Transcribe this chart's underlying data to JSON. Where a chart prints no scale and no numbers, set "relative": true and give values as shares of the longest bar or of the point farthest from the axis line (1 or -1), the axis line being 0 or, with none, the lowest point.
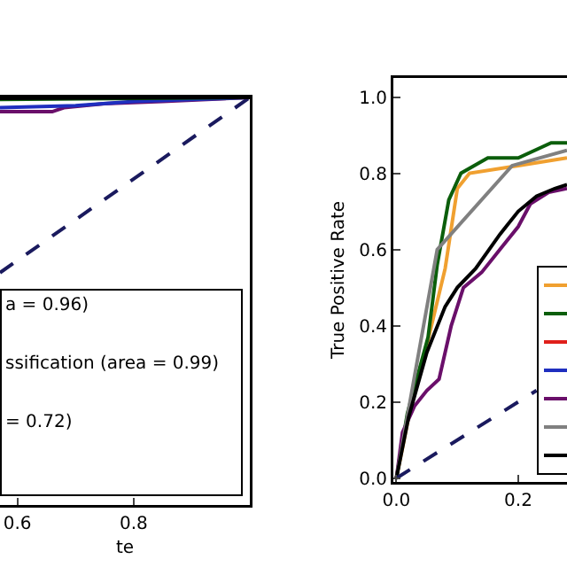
{
  "chart_data": [
    {
      "type": "line",
      "relative": true,
      "xlabel": "te",
      "xlim": [
        0.57,
        1.0
      ],
      "xticks": [
        {
          "value": 0.6,
          "label": "0.6"
        },
        {
          "value": 0.8,
          "label": "0.8"
        }
      ],
      "tick_labels": "x",
      "grid": false,
      "annotations": [
        "a = 0.96)",
        "ssification (area = 0.99)",
        "= 0.72)"
      ],
      "series": [
        {
          "color": "#1a1a5e",
          "line_style": "dashed",
          "x": [
            0.57,
            1.0
          ],
          "values": [
            0.57,
            1.0
          ]
        },
        {
          "color": "#6a0f6a",
          "x": [
            0.57,
            0.66,
            0.68,
            0.75,
            0.85,
            1.0
          ],
          "values": [
            0.965,
            0.965,
            0.975,
            0.985,
            0.99,
            1.0
          ]
        },
        {
          "color": "#1f2fbf",
          "x": [
            0.57,
            0.7,
            0.8,
            0.9,
            1.0
          ],
          "values": [
            0.975,
            0.98,
            0.99,
            0.995,
            1.0
          ]
        },
        {
          "color": "#0b5e0b",
          "x": [
            0.57,
            1.0
          ],
          "values": [
            0.995,
            1.0
          ]
        },
        {
          "color": "#000000",
          "x": [
            0.57,
            1.0
          ],
          "values": [
            0.998,
            1.0
          ]
        }
      ]
    },
    {
      "type": "line",
      "ylabel": "True Positive Rate",
      "xlim": [
        -0.005,
        0.28
      ],
      "ylim": [
        -0.01,
        1.05
      ],
      "xticks": [
        {
          "value": 0,
          "label": "0.0"
        },
        {
          "value": 0.2,
          "label": "0.2"
        }
      ],
      "yticks": [
        {
          "value": 0,
          "label": "0.0"
        },
        {
          "value": 0.2,
          "label": "0.2"
        },
        {
          "value": 0.4,
          "label": "0.4"
        },
        {
          "value": 0.6,
          "label": "0.6"
        },
        {
          "value": 0.8,
          "label": "0.8"
        },
        {
          "value": 1.0,
          "label": "1.0"
        }
      ],
      "grid": false,
      "series": [
        {
          "color": "#f0a030",
          "x": [
            0,
            0.02,
            0.05,
            0.08,
            0.1,
            0.12,
            0.2,
            0.28
          ],
          "values": [
            0,
            0.16,
            0.35,
            0.55,
            0.76,
            0.8,
            0.82,
            0.84
          ]
        },
        {
          "color": "#0b5e0b",
          "x": [
            0,
            0.018,
            0.052,
            0.067,
            0.086,
            0.106,
            0.15,
            0.2,
            0.254,
            0.28
          ],
          "values": [
            0,
            0.17,
            0.37,
            0.56,
            0.73,
            0.8,
            0.84,
            0.84,
            0.88,
            0.88
          ]
        },
        {
          "color": "#e0201b"
        },
        {
          "color": "#1f2fbf"
        },
        {
          "color": "#6a0f6a",
          "x": [
            0,
            0.01,
            0.03,
            0.05,
            0.07,
            0.09,
            0.11,
            0.14,
            0.17,
            0.2,
            0.22,
            0.25,
            0.28
          ],
          "values": [
            0,
            0.12,
            0.19,
            0.23,
            0.26,
            0.4,
            0.5,
            0.54,
            0.6,
            0.66,
            0.72,
            0.75,
            0.76
          ]
        },
        {
          "color": "#808080",
          "x": [
            0,
            0.03,
            0.067,
            0.19,
            0.28
          ],
          "values": [
            0,
            0.27,
            0.6,
            0.82,
            0.86
          ]
        },
        {
          "color": "#000000",
          "x": [
            0,
            0.02,
            0.05,
            0.08,
            0.1,
            0.13,
            0.17,
            0.2,
            0.23,
            0.26,
            0.28
          ],
          "values": [
            0,
            0.16,
            0.33,
            0.45,
            0.5,
            0.55,
            0.64,
            0.7,
            0.74,
            0.76,
            0.77
          ]
        },
        {
          "color": "#1a1a5e",
          "line_style": "dashed",
          "x": [
            0,
            0.23
          ],
          "values": [
            0,
            0.23
          ]
        }
      ]
    }
  ]
}
